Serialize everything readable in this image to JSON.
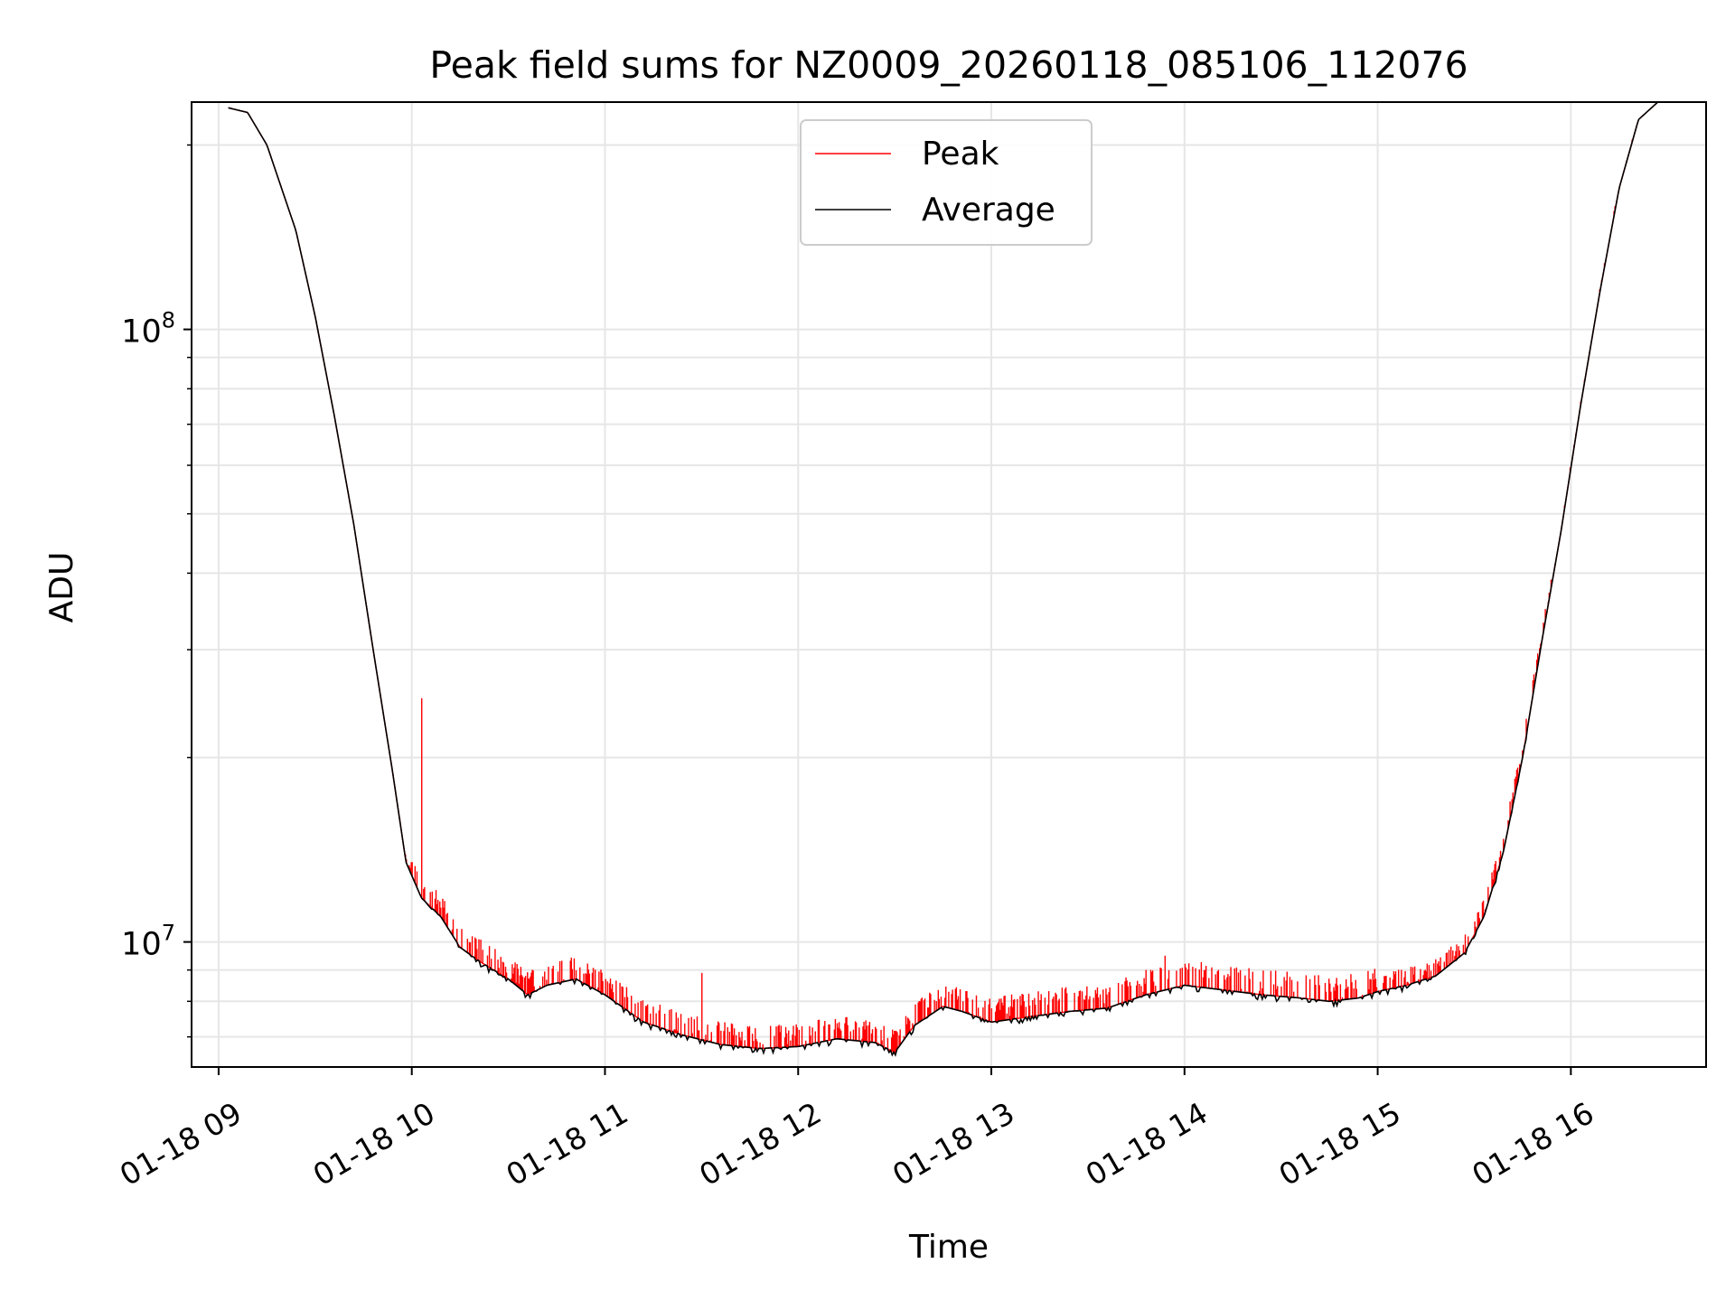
{
  "chart_data": {
    "type": "line",
    "title": "Peak field sums for NZ0009_20260118_085106_112076",
    "xlabel": "Time",
    "ylabel": "ADU",
    "yscale": "log",
    "grid": true,
    "legend_position": "upper center",
    "x_units": "hours since 01-18 09:00",
    "xlim": [
      -0.14,
      7.7
    ],
    "ylim": [
      6250000.0,
      235000000.0
    ],
    "x_ticks": [
      {
        "x": 0,
        "label": "01-18 09"
      },
      {
        "x": 1,
        "label": "01-18 10"
      },
      {
        "x": 2,
        "label": "01-18 11"
      },
      {
        "x": 3,
        "label": "01-18 12"
      },
      {
        "x": 4,
        "label": "01-18 13"
      },
      {
        "x": 5,
        "label": "01-18 14"
      },
      {
        "x": 6,
        "label": "01-18 15"
      },
      {
        "x": 7,
        "label": "01-18 16"
      }
    ],
    "y_major_ticks": [
      {
        "value": 10000000,
        "base": "10",
        "exp": "7"
      },
      {
        "value": 100000000,
        "base": "10",
        "exp": "8"
      }
    ],
    "y_minor_ticks": [
      7000000,
      8000000,
      9000000,
      20000000,
      30000000,
      40000000,
      50000000,
      60000000,
      70000000,
      80000000,
      90000000,
      200000000
    ],
    "series": [
      {
        "name": "Peak",
        "color": "#ff0000",
        "style": "spiky_above_average",
        "spike_amplitude": {
          "before_10": 0.02,
          "10_to_13": 0.09,
          "13_to_15": 0.1,
          "after_15": 0.07
        },
        "notable_spikes": [
          {
            "x": 1.05,
            "y": 25000000
          },
          {
            "x": 1.0,
            "y": 13500000
          },
          {
            "x": 2.5,
            "y": 8900000
          },
          {
            "x": 4.9,
            "y": 9500000
          }
        ]
      },
      {
        "name": "Average",
        "color": "#000000",
        "style": "smooth_curve",
        "points": [
          [
            0.05,
            230000000
          ],
          [
            0.15,
            226000000
          ],
          [
            0.25,
            200000000
          ],
          [
            0.4,
            145000000
          ],
          [
            0.5,
            105000000
          ],
          [
            0.6,
            72000000
          ],
          [
            0.7,
            48000000
          ],
          [
            0.8,
            30000000
          ],
          [
            0.9,
            19000000
          ],
          [
            0.97,
            13500000
          ],
          [
            1.05,
            11800000
          ],
          [
            1.15,
            11000000
          ],
          [
            1.25,
            9800000
          ],
          [
            1.35,
            9300000
          ],
          [
            1.5,
            8700000
          ],
          [
            1.6,
            8200000
          ],
          [
            1.7,
            8500000
          ],
          [
            1.85,
            8700000
          ],
          [
            2.0,
            8200000
          ],
          [
            2.2,
            7400000
          ],
          [
            2.4,
            7050000
          ],
          [
            2.6,
            6800000
          ],
          [
            2.8,
            6700000
          ],
          [
            3.0,
            6750000
          ],
          [
            3.2,
            6950000
          ],
          [
            3.4,
            6850000
          ],
          [
            3.5,
            6600000
          ],
          [
            3.6,
            7300000
          ],
          [
            3.75,
            7850000
          ],
          [
            3.85,
            7700000
          ],
          [
            4.0,
            7400000
          ],
          [
            4.2,
            7550000
          ],
          [
            4.4,
            7700000
          ],
          [
            4.6,
            7800000
          ],
          [
            4.8,
            8200000
          ],
          [
            5.0,
            8500000
          ],
          [
            5.2,
            8350000
          ],
          [
            5.4,
            8200000
          ],
          [
            5.6,
            8100000
          ],
          [
            5.75,
            8000000
          ],
          [
            5.9,
            8100000
          ],
          [
            6.0,
            8300000
          ],
          [
            6.15,
            8500000
          ],
          [
            6.3,
            8800000
          ],
          [
            6.45,
            9600000
          ],
          [
            6.55,
            11000000
          ],
          [
            6.65,
            14000000
          ],
          [
            6.75,
            20000000
          ],
          [
            6.85,
            31000000
          ],
          [
            6.95,
            47000000
          ],
          [
            7.05,
            75000000
          ],
          [
            7.15,
            115000000
          ],
          [
            7.25,
            170000000
          ],
          [
            7.35,
            220000000
          ],
          [
            7.45,
            235000000
          ]
        ]
      }
    ]
  }
}
